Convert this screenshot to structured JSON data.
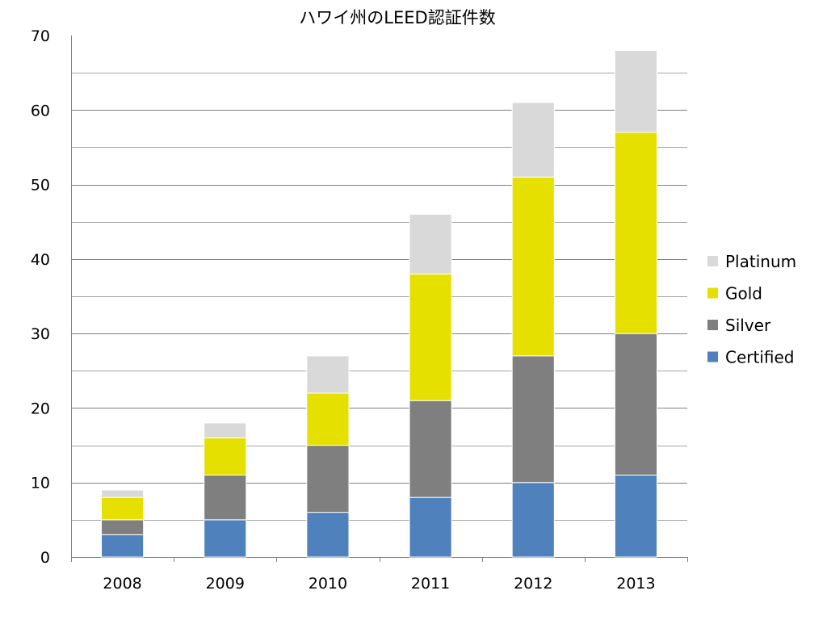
{
  "chart_data": {
    "type": "bar",
    "stacked": true,
    "title": "ハワイ州のLEED認証件数",
    "xlabel": "",
    "ylabel": "",
    "categories": [
      "2008",
      "2009",
      "2010",
      "2011",
      "2012",
      "2013"
    ],
    "ylim": [
      0,
      70
    ],
    "yticks": [
      0,
      10,
      20,
      30,
      40,
      50,
      60,
      70
    ],
    "grid": true,
    "legend_position": "right",
    "series": [
      {
        "name": "Certified",
        "color": "#4f81bd",
        "values": [
          3,
          5,
          6,
          8,
          10,
          11
        ]
      },
      {
        "name": "Silver",
        "color": "#7f7f7f",
        "values": [
          2,
          6,
          9,
          13,
          17,
          19
        ]
      },
      {
        "name": "Gold",
        "color": "#e6e000",
        "values": [
          3,
          5,
          7,
          17,
          24,
          27
        ]
      },
      {
        "name": "Platinum",
        "color": "#d9d9d9",
        "values": [
          1,
          2,
          5,
          8,
          10,
          11
        ]
      }
    ]
  }
}
